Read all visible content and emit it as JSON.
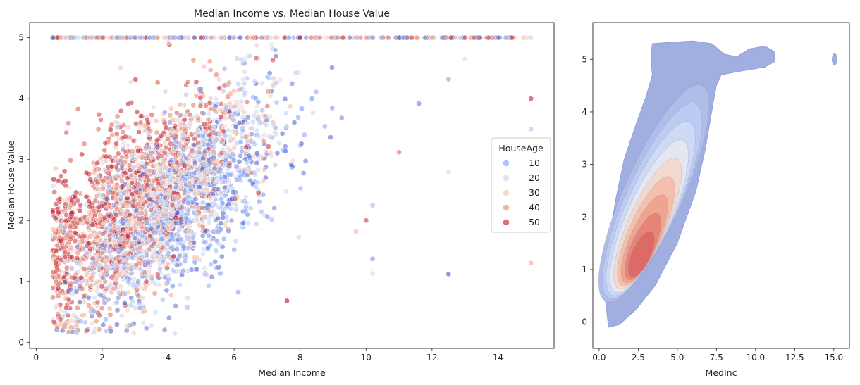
{
  "chart_data": [
    {
      "type": "scatter",
      "title": "Median Income vs. Median House Value",
      "xlabel": "Median Income",
      "ylabel": "Median House Value",
      "xlim": [
        -0.2,
        15.7
      ],
      "ylim": [
        -0.1,
        5.25
      ],
      "xticks": [
        0,
        2,
        4,
        6,
        8,
        10,
        12,
        14
      ],
      "yticks": [
        0,
        1,
        2,
        3,
        4,
        5
      ],
      "grid": false,
      "hue": "HouseAge",
      "legend": {
        "title": "HouseAge",
        "placement": "center-right",
        "entries": [
          {
            "label": "10",
            "color": "#9db9f8"
          },
          {
            "label": "20",
            "color": "#d6e0f3"
          },
          {
            "label": "30",
            "color": "#efd2c5"
          },
          {
            "label": "40",
            "color": "#f2a98a"
          },
          {
            "label": "50",
            "color": "#d6545c"
          }
        ]
      },
      "color_scale": [
        "#3b4cc0",
        "#7a9cf7",
        "#c1d4f4",
        "#f2d7c9",
        "#f6a385",
        "#d24b40",
        "#b40426"
      ],
      "point_count_shown": "approx",
      "notes_visible": "dense cloud capped at 5.0",
      "series": [
        {
          "points_sample": [
            {
              "x": 0.5,
              "y": 5.0
            },
            {
              "x": 1.2,
              "y": 5.0
            },
            {
              "x": 2.0,
              "y": 5.0
            },
            {
              "x": 3.0,
              "y": 5.0
            },
            {
              "x": 4.0,
              "y": 5.0
            },
            {
              "x": 5.0,
              "y": 5.0
            },
            {
              "x": 6.0,
              "y": 5.0
            },
            {
              "x": 7.0,
              "y": 5.0
            },
            {
              "x": 8.0,
              "y": 5.0
            },
            {
              "x": 9.0,
              "y": 5.0
            },
            {
              "x": 10.0,
              "y": 5.0
            },
            {
              "x": 11.0,
              "y": 5.0
            },
            {
              "x": 12.0,
              "y": 5.0
            },
            {
              "x": 13.0,
              "y": 5.0
            },
            {
              "x": 14.0,
              "y": 5.0
            },
            {
              "x": 15.0,
              "y": 5.0
            },
            {
              "x": 15.0,
              "y": 4.0
            },
            {
              "x": 15.0,
              "y": 3.5
            },
            {
              "x": 15.0,
              "y": 1.3
            },
            {
              "x": 12.5,
              "y": 1.12
            },
            {
              "x": 12.5,
              "y": 2.8
            },
            {
              "x": 11.0,
              "y": 3.12
            },
            {
              "x": 10.2,
              "y": 1.37
            },
            {
              "x": 10.2,
              "y": 1.13
            },
            {
              "x": 10.0,
              "y": 2.0
            },
            {
              "x": 10.2,
              "y": 2.25
            },
            {
              "x": 9.7,
              "y": 1.82
            },
            {
              "x": 7.6,
              "y": 0.68
            },
            {
              "x": 4.2,
              "y": 0.15
            },
            {
              "x": 12.5,
              "y": 4.32
            },
            {
              "x": 11.6,
              "y": 3.92
            },
            {
              "x": 13.0,
              "y": 4.65
            }
          ]
        }
      ]
    },
    {
      "type": "kde",
      "xlabel": "MedInc",
      "ylabel": "",
      "xlim": [
        -0.4,
        16.0
      ],
      "ylim": [
        -0.5,
        5.7
      ],
      "xticks": [
        "0.0",
        "2.5",
        "5.0",
        "7.5",
        "10.0",
        "12.5",
        "15.0"
      ],
      "yticks": [
        0,
        1,
        2,
        3,
        4,
        5
      ],
      "grid": false,
      "peak": {
        "x": 2.6,
        "y": 1.15
      },
      "levels": 9
    }
  ]
}
